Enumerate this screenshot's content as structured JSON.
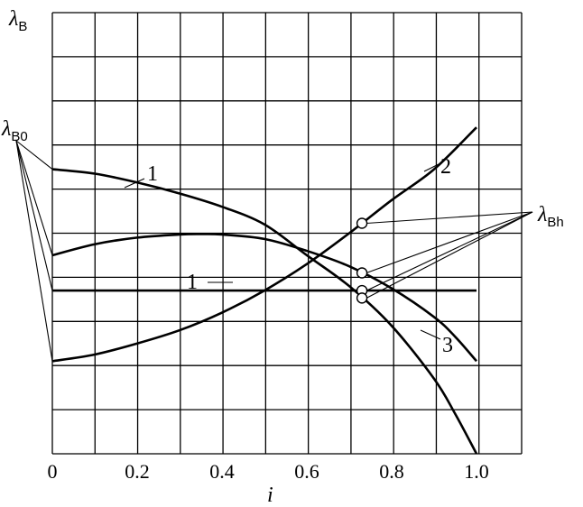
{
  "chart_data": {
    "type": "line",
    "x_ticks": [
      "0",
      "0.2",
      "0.4",
      "0.6",
      "0.8",
      "1.0"
    ],
    "xlabel": "i",
    "ylabel": {
      "symbol": "λ",
      "sub": "B"
    },
    "xlim": [
      0,
      1.12
    ],
    "grid": true,
    "series": [
      {
        "name": "1",
        "x": [
          0,
          0.1,
          0.2,
          0.3,
          0.4,
          0.5,
          0.6,
          0.7,
          0.8,
          0.9,
          0.95,
          1.0
        ],
        "y": [
          0.645,
          0.635,
          0.615,
          0.59,
          0.56,
          0.52,
          0.45,
          0.38,
          0.29,
          0.17,
          0.09,
          0.0
        ]
      },
      {
        "name": "1",
        "x": [
          0,
          1.0
        ],
        "y": [
          0.37,
          0.37
        ]
      },
      {
        "name": "2",
        "x": [
          0,
          0.1,
          0.2,
          0.3,
          0.4,
          0.5,
          0.6,
          0.7,
          0.8,
          0.9,
          1.0
        ],
        "y": [
          0.21,
          0.225,
          0.25,
          0.28,
          0.32,
          0.37,
          0.43,
          0.5,
          0.575,
          0.645,
          0.74
        ]
      },
      {
        "name": "3",
        "x": [
          0,
          0.1,
          0.2,
          0.3,
          0.35,
          0.4,
          0.5,
          0.6,
          0.7,
          0.8,
          0.9,
          0.95,
          1.0
        ],
        "y": [
          0.45,
          0.475,
          0.49,
          0.497,
          0.498,
          0.497,
          0.487,
          0.46,
          0.425,
          0.375,
          0.31,
          0.265,
          0.21
        ]
      }
    ],
    "markers_x": 0.73,
    "annotations": {
      "lambda_B0": {
        "symbol": "λ",
        "sub": "B0"
      },
      "lambda_Bh": {
        "symbol": "λ",
        "sub": "Bh"
      },
      "curve_label_1_top": "1",
      "curve_label_1_flat": "1",
      "curve_label_2": "2",
      "curve_label_3": "3"
    }
  }
}
